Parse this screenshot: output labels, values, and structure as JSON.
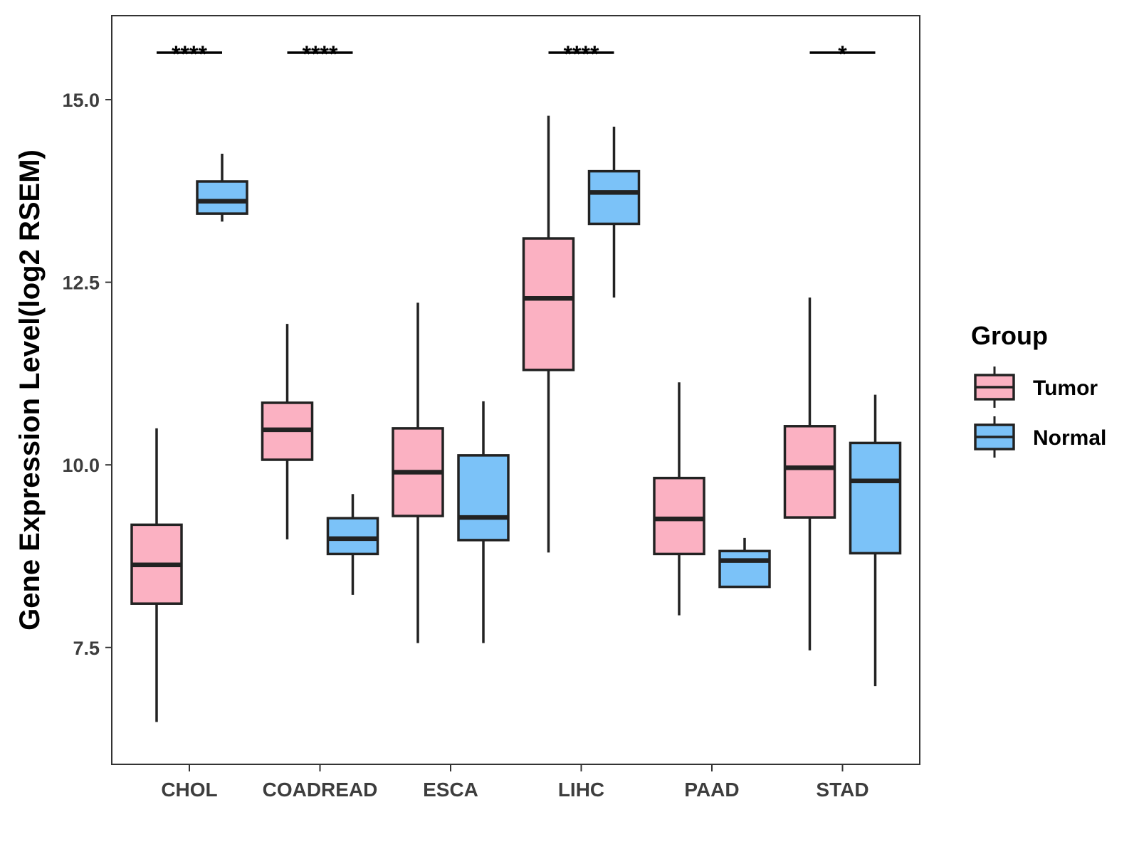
{
  "chart_data": {
    "type": "boxplot",
    "title": "",
    "xlabel": "",
    "ylabel": "Gene Expression Level(log2 RSEM)",
    "ylim": [
      5.9,
      16.15
    ],
    "yticks": [
      7.5,
      10.0,
      12.5,
      15.0
    ],
    "ytick_labels": [
      "7.5",
      "10.0",
      "12.5",
      "15.0"
    ],
    "grid": false,
    "categories": [
      "CHOL",
      "COADREAD",
      "ESCA",
      "LIHC",
      "PAAD",
      "STAD"
    ],
    "legend": {
      "title": "Group",
      "placement": "right",
      "entries": [
        {
          "name": "Tumor",
          "color": "#fbb1c2"
        },
        {
          "name": "Normal",
          "color": "#7bc2f8"
        }
      ]
    },
    "series": [
      {
        "name": "Tumor",
        "color": "#fbb1c2",
        "boxes": [
          {
            "category": "CHOL",
            "min": 6.48,
            "q1": 8.1,
            "median": 8.63,
            "q3": 9.18,
            "max": 10.5
          },
          {
            "category": "COADREAD",
            "min": 8.98,
            "q1": 10.07,
            "median": 10.48,
            "q3": 10.85,
            "max": 11.93
          },
          {
            "category": "ESCA",
            "min": 7.56,
            "q1": 9.3,
            "median": 9.9,
            "q3": 10.5,
            "max": 12.22
          },
          {
            "category": "LIHC",
            "min": 8.8,
            "q1": 11.3,
            "median": 12.28,
            "q3": 13.1,
            "max": 14.78
          },
          {
            "category": "PAAD",
            "min": 7.94,
            "q1": 8.78,
            "median": 9.26,
            "q3": 9.82,
            "max": 11.13
          },
          {
            "category": "STAD",
            "min": 7.46,
            "q1": 9.28,
            "median": 9.96,
            "q3": 10.53,
            "max": 12.29
          }
        ]
      },
      {
        "name": "Normal",
        "color": "#7bc2f8",
        "boxes": [
          {
            "category": "CHOL",
            "min": 13.33,
            "q1": 13.44,
            "median": 13.61,
            "q3": 13.88,
            "max": 14.26
          },
          {
            "category": "COADREAD",
            "min": 8.22,
            "q1": 8.78,
            "median": 8.99,
            "q3": 9.27,
            "max": 9.6
          },
          {
            "category": "ESCA",
            "min": 7.56,
            "q1": 8.97,
            "median": 9.28,
            "q3": 10.13,
            "max": 10.87
          },
          {
            "category": "LIHC",
            "min": 12.29,
            "q1": 13.3,
            "median": 13.73,
            "q3": 14.02,
            "max": 14.63
          },
          {
            "category": "PAAD",
            "min": 8.33,
            "q1": 8.33,
            "median": 8.69,
            "q3": 8.82,
            "max": 9.0
          },
          {
            "category": "STAD",
            "min": 6.97,
            "q1": 8.79,
            "median": 9.78,
            "q3": 10.3,
            "max": 10.96
          }
        ]
      }
    ],
    "annotations": [
      {
        "category": "CHOL",
        "label": "****"
      },
      {
        "category": "COADREAD",
        "label": "****"
      },
      {
        "category": "LIHC",
        "label": "****"
      },
      {
        "category": "STAD",
        "label": "*"
      }
    ]
  }
}
